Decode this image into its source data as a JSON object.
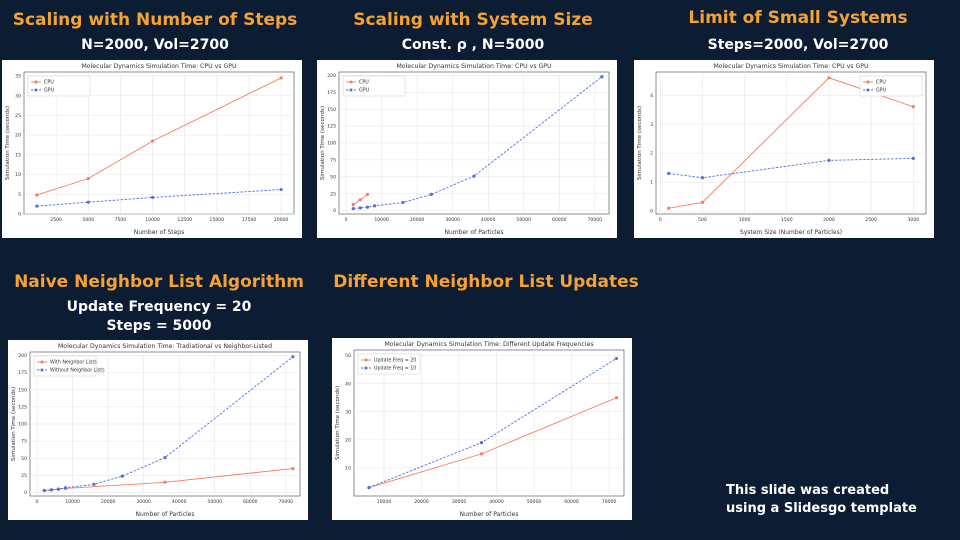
{
  "slide": {
    "footer_line1": "This slide was created",
    "footer_line2": "using a Slidesgo template"
  },
  "colors": {
    "background": "#0c1c33",
    "accent": "#f3a233",
    "cpu": "#fa7b5c",
    "gpu": "#4c72e0"
  },
  "chart_data": [
    {
      "id": "c1",
      "heading": "Scaling with Number of Steps",
      "subheading": "N=2000, Vol=2700",
      "type": "line",
      "title": "Molecular Dynamics Simulation Time: CPU vs GPU",
      "xlabel": "Number of Steps",
      "ylabel": "Simulation Time (seconds)",
      "xlim": [
        0,
        21000
      ],
      "ylim": [
        0,
        36
      ],
      "xticks": [
        2500,
        5000,
        7500,
        10000,
        12500,
        15000,
        17500,
        20000
      ],
      "yticks": [
        0,
        5,
        10,
        15,
        20,
        25,
        30,
        35
      ],
      "legend": "top-left",
      "grid": true,
      "series": [
        {
          "name": "CPU",
          "x": [
            1000,
            5000,
            10000,
            20000
          ],
          "y": [
            4.8,
            9.0,
            18.5,
            34.5
          ]
        },
        {
          "name": "GPU",
          "x": [
            1000,
            5000,
            10000,
            20000
          ],
          "y": [
            2.0,
            3.0,
            4.2,
            6.2
          ]
        }
      ]
    },
    {
      "id": "c2",
      "heading": "Scaling with System Size",
      "subheading": "Const.  ρ , N=5000",
      "type": "line",
      "title": "Molecular Dynamics Simulation Time: CPU vs GPU",
      "xlabel": "Number of Particles",
      "ylabel": "Simulation Time (seconds)",
      "xlim": [
        -2000,
        74000
      ],
      "ylim": [
        -5,
        205
      ],
      "xticks": [
        0,
        10000,
        20000,
        30000,
        40000,
        50000,
        60000,
        70000
      ],
      "yticks": [
        0,
        25,
        50,
        75,
        100,
        125,
        150,
        175,
        200
      ],
      "legend": "top-left",
      "grid": true,
      "series": [
        {
          "name": "CPU",
          "x": [
            2000,
            4000,
            6000
          ],
          "y": [
            9,
            16,
            24
          ]
        },
        {
          "name": "GPU",
          "x": [
            2000,
            4000,
            6000,
            8000,
            16000,
            24000,
            36000,
            72000
          ],
          "y": [
            3,
            4,
            5,
            7,
            12,
            24,
            51,
            198
          ]
        }
      ]
    },
    {
      "id": "c3",
      "heading": "Limit of Small Systems",
      "subheading": "Steps=2000, Vol=2700",
      "type": "line",
      "title": "Molecular Dynamics Simulation Time: CPU vs GPU",
      "xlabel": "System Size (Number of Particles)",
      "ylabel": "Simulation Time (seconds)",
      "xlim": [
        -50,
        3150
      ],
      "ylim": [
        -0.1,
        4.8
      ],
      "xticks": [
        0,
        500,
        1000,
        1500,
        2000,
        2500,
        3000
      ],
      "yticks": [
        0,
        1,
        2,
        3,
        4
      ],
      "legend": "top-right",
      "grid": true,
      "series": [
        {
          "name": "CPU",
          "x": [
            100,
            500,
            2000,
            3000
          ],
          "y": [
            0.1,
            0.3,
            4.6,
            3.6
          ]
        },
        {
          "name": "GPU",
          "x": [
            100,
            500,
            2000,
            3000
          ],
          "y": [
            1.3,
            1.15,
            1.75,
            1.82
          ]
        }
      ]
    },
    {
      "id": "c4",
      "heading": "Naive Neighbor List Algorithm",
      "subheading": "Update Frequency = 20",
      "subheading2": "Steps = 5000",
      "type": "line",
      "title": "Molecular Dynamics Simulation Time: Tradiational vs Neighbor-Listed",
      "xlabel": "Number of Particles",
      "ylabel": "Simulation Time (seconds)",
      "xlim": [
        -2000,
        74000
      ],
      "ylim": [
        -5,
        205
      ],
      "xticks": [
        0,
        10000,
        20000,
        30000,
        40000,
        50000,
        60000,
        70000
      ],
      "yticks": [
        0,
        25,
        50,
        75,
        100,
        125,
        150,
        175,
        200
      ],
      "legend": "top-left",
      "grid": true,
      "series": [
        {
          "name": "With Neighbor Lists",
          "x": [
            2000,
            4000,
            6000,
            8000,
            36000,
            72000
          ],
          "y": [
            3,
            4,
            5,
            6,
            15,
            35
          ]
        },
        {
          "name": "Without Neighbor Lists",
          "x": [
            2000,
            4000,
            6000,
            8000,
            16000,
            24000,
            36000,
            72000
          ],
          "y": [
            3,
            4,
            5,
            7,
            12,
            24,
            51,
            198
          ]
        }
      ]
    },
    {
      "id": "c5",
      "heading": "Different Neighbor List Updates",
      "subheading": "",
      "type": "line",
      "title": "Molecular Dynamics Simulation Time: Different Update Frequencies",
      "xlabel": "Number of Particles",
      "ylabel": "Simulation Time (seconds)",
      "xlim": [
        2000,
        74000
      ],
      "ylim": [
        0,
        52
      ],
      "xticks": [
        10000,
        20000,
        30000,
        40000,
        50000,
        60000,
        70000
      ],
      "yticks": [
        10,
        20,
        30,
        40,
        50
      ],
      "legend": "top-left",
      "grid": true,
      "series": [
        {
          "name": "Update Freq = 20",
          "x": [
            6000,
            36000,
            72000
          ],
          "y": [
            3,
            15,
            35
          ]
        },
        {
          "name": "Update Freq = 10",
          "x": [
            6000,
            36000,
            72000
          ],
          "y": [
            3,
            19,
            49
          ]
        }
      ]
    }
  ]
}
